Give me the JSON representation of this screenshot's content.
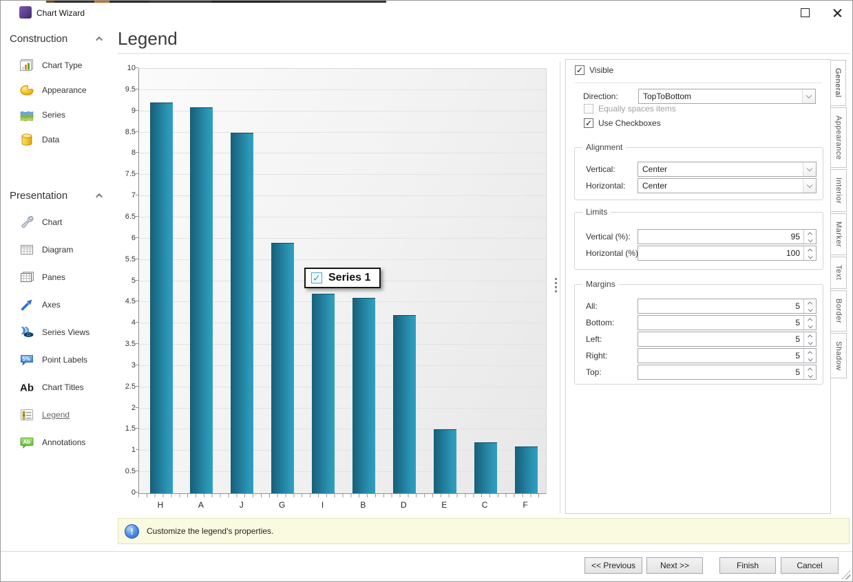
{
  "window": {
    "title": "Chart Wizard"
  },
  "sidebar": {
    "sections": [
      {
        "label": "Construction",
        "items": [
          {
            "icon": "chart-type",
            "label": "Chart Type"
          },
          {
            "icon": "appearance",
            "label": "Appearance"
          },
          {
            "icon": "series",
            "label": "Series"
          },
          {
            "icon": "data",
            "label": "Data"
          }
        ]
      },
      {
        "label": "Presentation",
        "items": [
          {
            "icon": "chart",
            "label": "Chart"
          },
          {
            "icon": "diagram",
            "label": "Diagram"
          },
          {
            "icon": "panes",
            "label": "Panes"
          },
          {
            "icon": "axes",
            "label": "Axes"
          },
          {
            "icon": "series-views",
            "label": "Series Views"
          },
          {
            "icon": "point-labels",
            "label": "Point Labels"
          },
          {
            "icon": "chart-titles",
            "label": "Chart Titles"
          },
          {
            "icon": "legend",
            "label": "Legend",
            "selected": true
          },
          {
            "icon": "annotations",
            "label": "Annotations"
          }
        ]
      }
    ]
  },
  "main": {
    "title": "Legend"
  },
  "chart_data": {
    "type": "bar",
    "categories": [
      "H",
      "A",
      "J",
      "G",
      "I",
      "B",
      "D",
      "E",
      "C",
      "F"
    ],
    "values": [
      9.2,
      9.1,
      8.5,
      5.9,
      4.7,
      4.6,
      4.2,
      1.5,
      1.2,
      1.1
    ],
    "series": [
      {
        "name": "Series 1"
      }
    ],
    "title": "",
    "xlabel": "",
    "ylabel": "",
    "ylim": [
      0,
      10
    ],
    "ytick_step": 0.5,
    "grid": true,
    "bar_color": "#2391b4",
    "legend": {
      "visible": true,
      "label": "Series 1",
      "checked": true,
      "position": "center"
    }
  },
  "panel": {
    "visible": {
      "label": "Visible",
      "checked": true
    },
    "direction": {
      "label": "Direction:",
      "value": "TopToBottom"
    },
    "equally": {
      "label": "Equally spaces items",
      "checked": false,
      "enabled": false
    },
    "use_checkboxes": {
      "label": "Use Checkboxes",
      "checked": true
    },
    "alignment": {
      "title": "Alignment",
      "rows": [
        {
          "label": "Vertical:",
          "value": "Center"
        },
        {
          "label": "Horizontal:",
          "value": "Center"
        }
      ]
    },
    "limits": {
      "title": "Limits",
      "rows": [
        {
          "label": "Vertical (%):",
          "value": "95"
        },
        {
          "label": "Horizontal (%):",
          "value": "100"
        }
      ]
    },
    "margins": {
      "title": "Margins",
      "rows": [
        {
          "label": "All:",
          "value": "5"
        },
        {
          "label": "Bottom:",
          "value": "5"
        },
        {
          "label": "Left:",
          "value": "5"
        },
        {
          "label": "Right:",
          "value": "5"
        },
        {
          "label": "Top:",
          "value": "5"
        }
      ]
    },
    "tabs": [
      {
        "label": "General",
        "active": true
      },
      {
        "label": "Appearance"
      },
      {
        "label": "Interior"
      },
      {
        "label": "Marker"
      },
      {
        "label": "Text"
      },
      {
        "label": "Border"
      },
      {
        "label": "Shadow"
      }
    ]
  },
  "info_bar": {
    "text": "Customize the legend's properties."
  },
  "footer": {
    "buttons": [
      {
        "label": "<< Previous"
      },
      {
        "label": "Next >>"
      },
      {
        "label": "Finish"
      },
      {
        "label": "Cancel"
      }
    ]
  }
}
